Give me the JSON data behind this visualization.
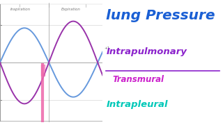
{
  "bg_color": "#ffffff",
  "left_panel_bg": "#f8f8f5",
  "title": "lung Pressure",
  "label1": "Intrapulmonary",
  "label2": "Transmural",
  "label3": "Intrapleural",
  "title_color": "#1a5fd4",
  "label1_color": "#8b22cc",
  "label2_color": "#cc22cc",
  "label3_color": "#00c8b8",
  "inspiration_label": "Inspiration",
  "expiration_label": "Expiration",
  "curve_blue_color": "#6699dd",
  "curve_purple_color": "#9933aa",
  "vline_color": "#ee66aa",
  "axis_color": "#999999",
  "tick_color": "#666666",
  "grid_color": "#cccccc",
  "ylim": [
    -1.6,
    1.6
  ],
  "xlim": [
    0,
    4.2
  ]
}
